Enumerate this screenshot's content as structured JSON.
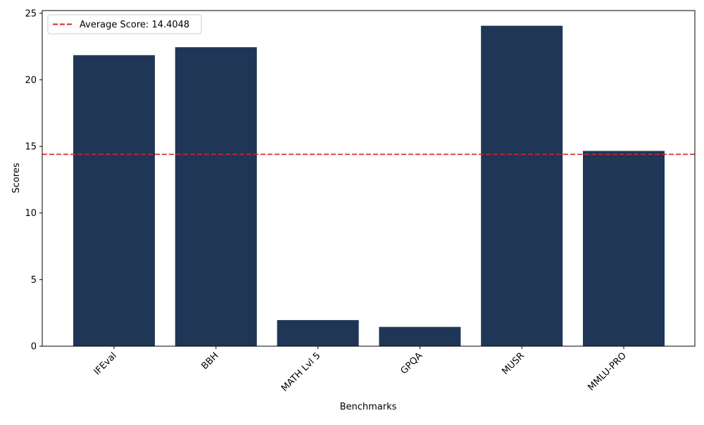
{
  "chart_data": {
    "type": "bar",
    "title": "",
    "xlabel": "Benchmarks",
    "ylabel": "Scores",
    "categories": [
      "IFEval",
      "BBH",
      "MATH Lvl 5",
      "GPQA",
      "MUSR",
      "MMLU-PRO"
    ],
    "values": [
      21.85,
      22.45,
      1.96,
      1.45,
      24.06,
      14.66
    ],
    "ylim": [
      0,
      25.2
    ],
    "yticks": [
      0,
      5,
      10,
      15,
      20,
      25
    ],
    "grid": false,
    "legend_position": "upper-left",
    "bar_color": "#1f3657",
    "reference_line": {
      "label": "Average Score: 14.4048",
      "value": 14.4048,
      "color": "#d62728",
      "style": "dashed"
    }
  }
}
